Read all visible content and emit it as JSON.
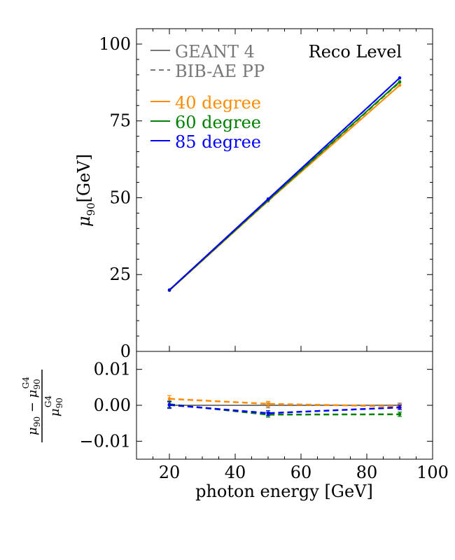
{
  "chart_data": [
    {
      "type": "line",
      "panel": "main",
      "x": [
        20,
        50,
        90
      ],
      "xlim": [
        10,
        100
      ],
      "ylim": [
        0,
        105
      ],
      "yticks": [
        0,
        25,
        50,
        75,
        100
      ],
      "ylabel_main": "μ",
      "ylabel_sub": "90",
      "ylabel_unit": "[GeV]",
      "annotation": "Reco Level",
      "legend": {
        "style_entries": [
          "GEANT 4",
          "BIB-AE PP"
        ],
        "angle_entries": [
          "40 degree",
          "60 degree",
          "85 degree"
        ],
        "placement": "top-left"
      },
      "series": [
        {
          "name": "40 degree",
          "style": "GEANT 4",
          "color": "#ff8c00",
          "values": [
            19.8,
            48.9,
            86.6
          ]
        },
        {
          "name": "40 degree",
          "style": "BIB-AE PP",
          "color": "#ff8c00",
          "values": [
            19.85,
            49.0,
            86.6
          ]
        },
        {
          "name": "60 degree",
          "style": "GEANT 4",
          "color": "#008000",
          "values": [
            19.9,
            49.2,
            87.8
          ]
        },
        {
          "name": "60 degree",
          "style": "BIB-AE PP",
          "color": "#008000",
          "values": [
            19.9,
            49.1,
            87.6
          ]
        },
        {
          "name": "85 degree",
          "style": "GEANT 4",
          "color": "#0000ff",
          "values": [
            20.0,
            49.6,
            89.0
          ]
        },
        {
          "name": "85 degree",
          "style": "BIB-AE PP",
          "color": "#0000ff",
          "values": [
            20.0,
            49.5,
            88.95
          ]
        }
      ]
    },
    {
      "type": "line",
      "panel": "ratio",
      "x": [
        20,
        50,
        90
      ],
      "xlim": [
        10,
        100
      ],
      "ylim": [
        -0.015,
        0.015
      ],
      "yticks": [
        -0.01,
        0.0,
        0.01
      ],
      "ytick_labels": [
        "−0.01",
        "0.00",
        "0.01"
      ],
      "xticks": [
        20,
        40,
        60,
        80,
        100
      ],
      "xlabel": "photon energy [GeV]",
      "ylabel": "(μ90 − μ90^G4) / μ90^G4",
      "series": [
        {
          "name": "GEANT 4 reference",
          "color": "#777777",
          "values": [
            0.0,
            0.0,
            0.0
          ]
        },
        {
          "name": "40 degree",
          "color": "#ff8c00",
          "values": [
            0.0018,
            0.0004,
            -0.0003
          ]
        },
        {
          "name": "60 degree",
          "color": "#008000",
          "values": [
            0.0003,
            -0.0026,
            -0.0025
          ]
        },
        {
          "name": "85 degree",
          "color": "#0000ff",
          "values": [
            0.0001,
            -0.0022,
            -0.0006
          ]
        }
      ],
      "errors": [
        0.0009,
        0.0007,
        0.0006
      ]
    }
  ],
  "colors": {
    "grey": "#777777",
    "orange": "#ff8c00",
    "green": "#008000",
    "blue": "#0000ff"
  }
}
